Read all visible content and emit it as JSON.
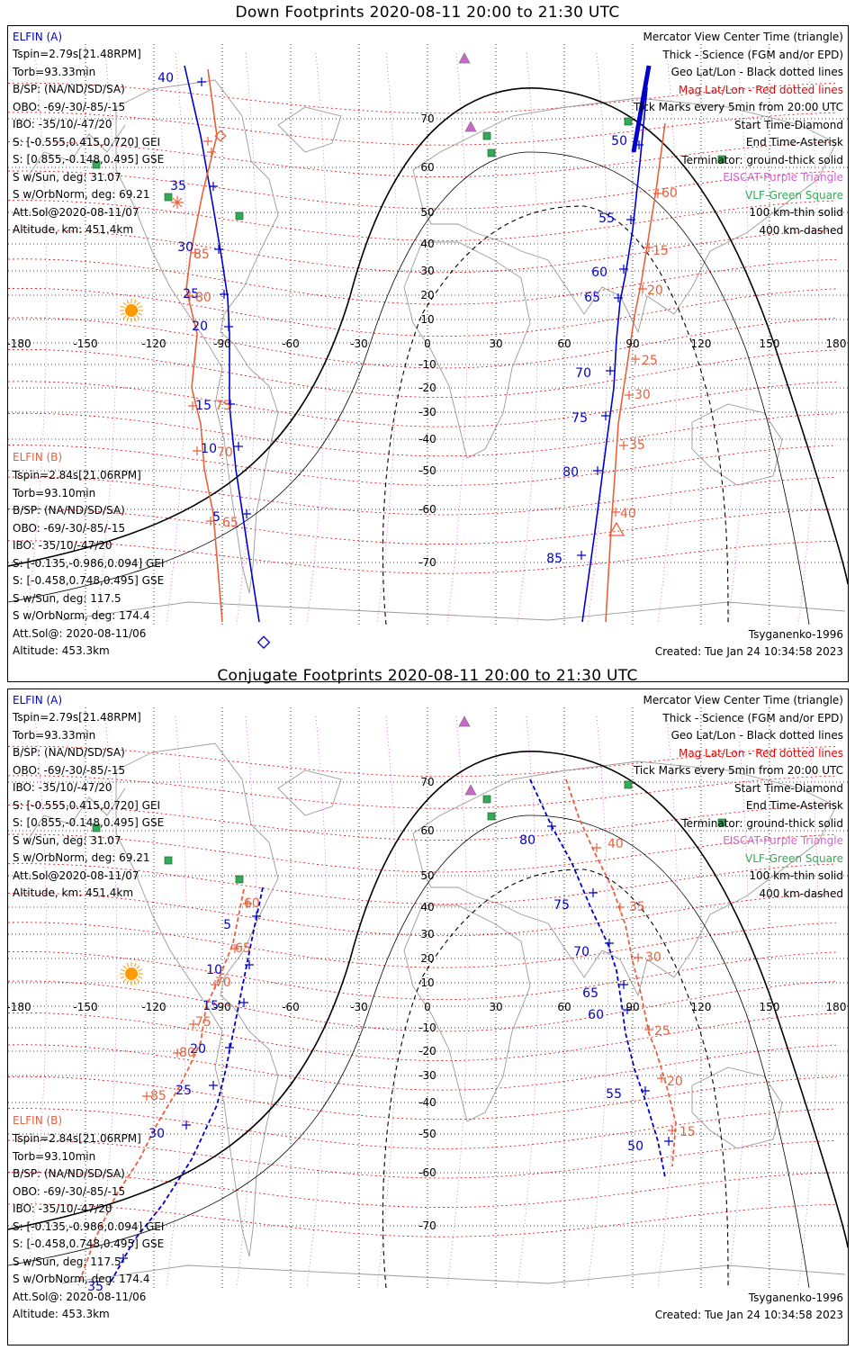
{
  "panels": [
    {
      "title": "Down Footprints 2020-08-11 20:00 to 21:30 UTC",
      "elfin_a": {
        "header": "ELFIN (A)",
        "lines": [
          "Tspin=2.79s[21.48RPM]",
          "Torb=93.33min",
          "B/SP: (NA/ND/SD/SA)",
          "OBO: -69/-30/-85/-15",
          "IBO: -35/10/-47/20",
          "S: [-0.555,0.415,0.720] GEI",
          "S: [0.855,-0.148,0.495] GSE",
          "S w/Sun, deg: 31.07",
          "S w/OrbNorm, deg: 69.21",
          "Att.Sol@2020-08-11/07",
          "Altitude, km: 451.4km"
        ]
      },
      "elfin_b": {
        "header": "ELFIN (B)",
        "lines": [
          "Tspin=2.84s[21.06RPM]",
          "Torb=93.10min",
          "B/SP: (NA/ND/SD/SA)",
          "OBO: -69/-30/-85/-15",
          "IBO: -35/10/-47/20",
          "S: [-0.135,-0.986,0.094] GEI",
          "S: [-0.458,0.748,0.495] GSE",
          "S w/Sun, deg: 117.5",
          "S w/OrbNorm, deg: 174.4",
          "Att.Sol@: 2020-08-11/06",
          "Altitude: 453.3km"
        ]
      },
      "legend": [
        {
          "text": "Mercator View Center Time (triangle)",
          "color": "#000000"
        },
        {
          "text": "Thick - Science (FGM and/or EPD)",
          "color": "#000000"
        },
        {
          "text": "Geo Lat/Lon - Black dotted lines",
          "color": "#000000"
        },
        {
          "text": "Mag Lat/Lon - Red dotted lines",
          "color": "#ee0000"
        },
        {
          "text": "Tick Marks every 5min from 20:00 UTC",
          "color": "#000000"
        },
        {
          "text": "Start Time-Diamond",
          "color": "#000000"
        },
        {
          "text": "End Time-Asterisk",
          "color": "#000000"
        },
        {
          "text": "Terminator: ground-thick solid",
          "color": "#000000"
        },
        {
          "text": "EISCAT-Purple Triangle",
          "color": "#cc66cc"
        },
        {
          "text": "VLF-Green Square",
          "color": "#33aa55"
        },
        {
          "text": "100 km-thin solid",
          "color": "#000000"
        },
        {
          "text": "400 km-dashed",
          "color": "#000000"
        }
      ],
      "model": "Tsyganenko-1996",
      "created": "Created: Tue Jan 24 10:34:58 2023"
    },
    {
      "title": "Conjugate Footprints 2020-08-11 20:00 to 21:30 UTC",
      "elfin_a": {
        "header": "ELFIN (A)",
        "lines": [
          "Tspin=2.79s[21.48RPM]",
          "Torb=93.33min",
          "B/SP: (NA/ND/SD/SA)",
          "OBO: -69/-30/-85/-15",
          "IBO: -35/10/-47/20",
          "S: [-0.555,0.415,0.720] GEI",
          "S: [0.855,-0.148,0.495] GSE",
          "S w/Sun, deg: 31.07",
          "S w/OrbNorm, deg: 69.21",
          "Att.Sol@2020-08-11/07",
          "Altitude, km: 451.4km"
        ]
      },
      "elfin_b": {
        "header": "ELFIN (B)",
        "lines": [
          "Tspin=2.84s[21.06RPM]",
          "Torb=93.10min",
          "B/SP: (NA/ND/SD/SA)",
          "OBO: -69/-30/-85/-15",
          "IBO: -35/10/-47/20",
          "S: [-0.135,-0.986,0.094] GEI",
          "S: [-0.458,0.748,0.495] GSE",
          "S w/Sun, deg: 117.5",
          "S w/OrbNorm, deg: 174.4",
          "Att.Sol@: 2020-08-11/06",
          "Altitude: 453.3km"
        ]
      },
      "legend": [
        {
          "text": "Mercator View Center Time (triangle)",
          "color": "#000000"
        },
        {
          "text": "Thick - Science (FGM and/or EPD)",
          "color": "#000000"
        },
        {
          "text": "Geo Lat/Lon - Black dotted lines",
          "color": "#000000"
        },
        {
          "text": "Mag Lat/Lon - Red dotted lines",
          "color": "#ee0000"
        },
        {
          "text": "Tick Marks every 5min from 20:00 UTC",
          "color": "#000000"
        },
        {
          "text": "Start Time-Diamond",
          "color": "#000000"
        },
        {
          "text": "End Time-Asterisk",
          "color": "#000000"
        },
        {
          "text": "Terminator: ground-thick solid",
          "color": "#000000"
        },
        {
          "text": "EISCAT-Purple Triangle",
          "color": "#cc66cc"
        },
        {
          "text": "VLF-Green Square",
          "color": "#33aa55"
        },
        {
          "text": "100 km-thin solid",
          "color": "#000000"
        },
        {
          "text": "400 km-dashed",
          "color": "#000000"
        }
      ],
      "model": "Tsyganenko-1996",
      "created": "Created: Tue Jan 24 10:34:58 2023"
    }
  ],
  "map": {
    "lon_ticks": [
      "-180",
      "-150",
      "-120",
      "-90",
      "-60",
      "-30",
      "0",
      "30",
      "60",
      "90",
      "120",
      "150",
      "180"
    ],
    "lat_ticks": [
      "70",
      "60",
      "50",
      "40",
      "30",
      "20",
      "10",
      "-10",
      "-20",
      "-30",
      "-40",
      "-50",
      "-60",
      "-70"
    ],
    "colors": {
      "elfin_a": "#0000cc",
      "elfin_b": "#e8603c",
      "mag_grid": "#ee0000",
      "eiscat": "#cc66cc",
      "vlf": "#33aa55",
      "sun": "#ff9900"
    },
    "track_ticks": {
      "down_a": [
        "40",
        "35",
        "30",
        "25",
        "20",
        "15",
        "10",
        "5",
        "50",
        "55",
        "60",
        "65",
        "70",
        "75",
        "80",
        "85"
      ],
      "down_b": [
        "85",
        "80",
        "75",
        "70",
        "65",
        "60",
        "15",
        "20",
        "25",
        "30",
        "35",
        "40",
        "45"
      ],
      "conj_a": [
        "5",
        "10",
        "15",
        "20",
        "25",
        "30",
        "35",
        "80",
        "75",
        "70",
        "65",
        "60",
        "55",
        "50"
      ],
      "conj_b": [
        "60",
        "65",
        "70",
        "75",
        "80",
        "85",
        "40",
        "35",
        "30",
        "25",
        "20",
        "15",
        "10"
      ]
    }
  }
}
